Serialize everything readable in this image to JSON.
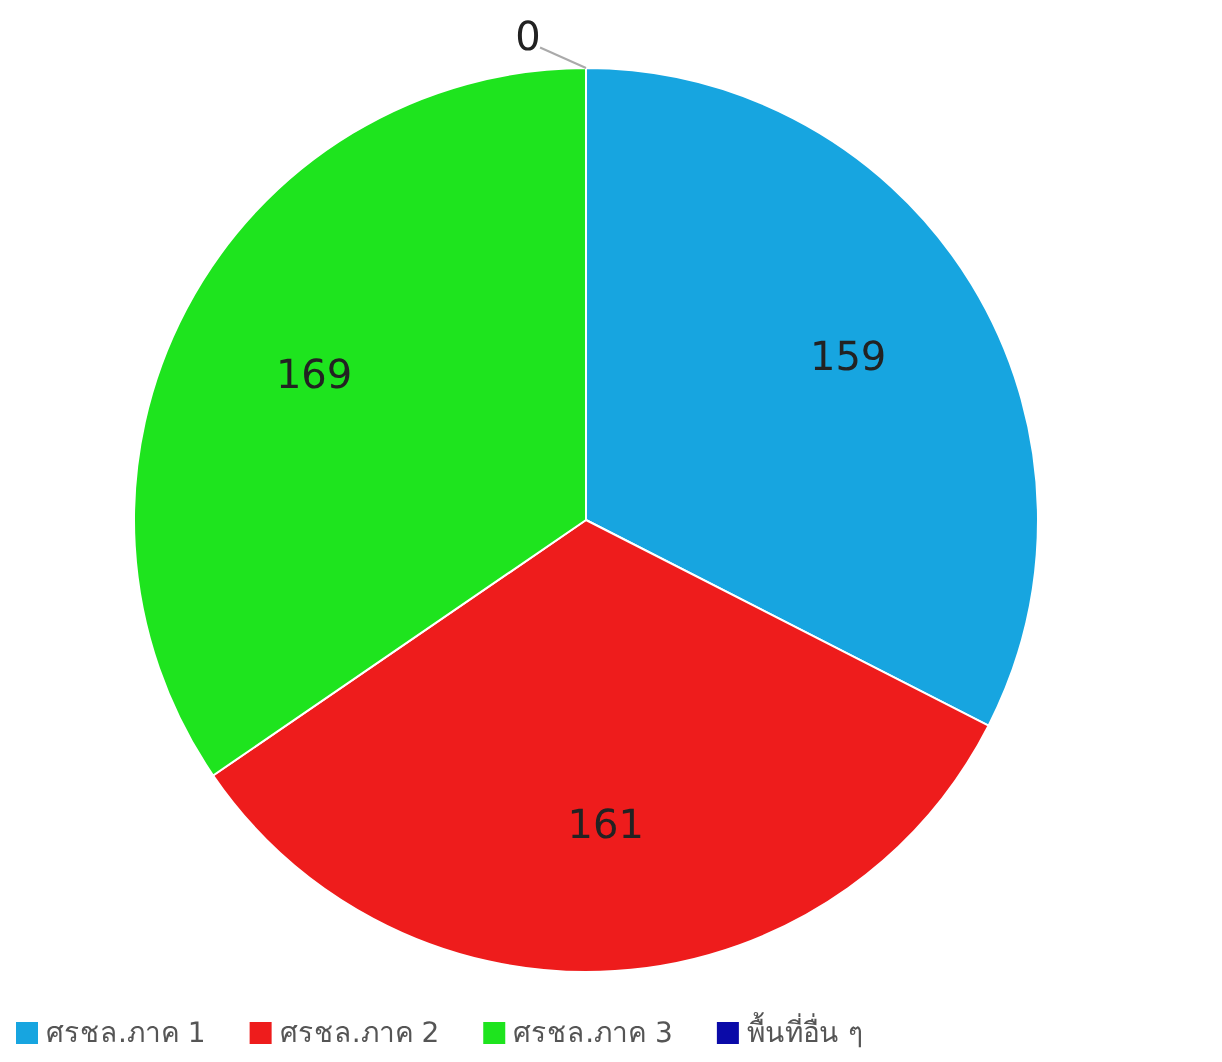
{
  "chart_data": {
    "type": "pie",
    "categories": [
      "ศรชล.ภาค 1",
      "ศรชล.ภาค 2",
      "ศรชล.ภาค 3",
      "พื้นที่อื่น ๆ"
    ],
    "values": [
      159,
      161,
      169,
      0
    ],
    "colors": [
      "#17a5e0",
      "#ee1c1c",
      "#1ee41e",
      "#0a0aa8"
    ],
    "value_labels": [
      "159",
      "161",
      "169",
      "0"
    ],
    "legend": "bottom"
  }
}
